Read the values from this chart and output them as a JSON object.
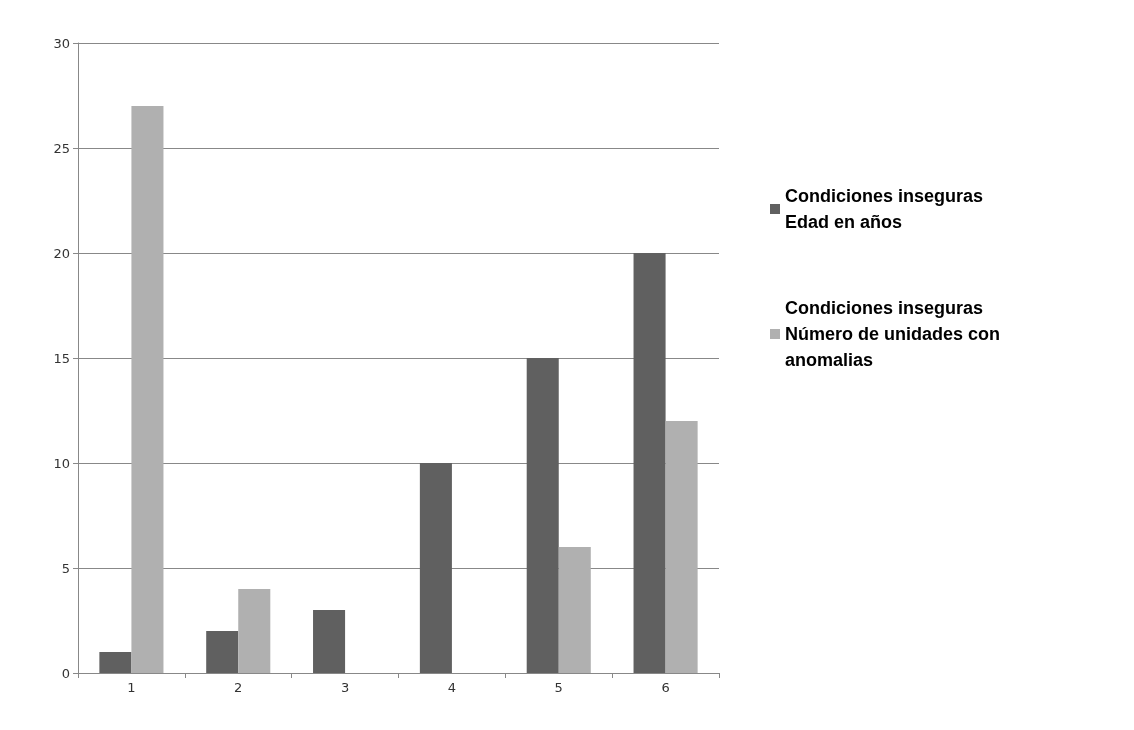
{
  "chart_data": {
    "type": "bar",
    "categories": [
      "1",
      "2",
      "3",
      "4",
      "5",
      "6"
    ],
    "series": [
      {
        "name": "Condiciones inseguras\nEdad en años",
        "color": "#606060",
        "values": [
          1,
          2,
          3,
          10,
          15,
          20
        ]
      },
      {
        "name": "Condiciones inseguras\nNúmero de unidades con\nanomalias",
        "color": "#b0b0b0",
        "values": [
          27,
          4,
          0,
          0,
          6,
          12
        ]
      }
    ],
    "ylim": [
      0,
      30
    ],
    "yticks": [
      0,
      5,
      10,
      15,
      20,
      25,
      30
    ],
    "grid": "y",
    "legend": "right"
  }
}
